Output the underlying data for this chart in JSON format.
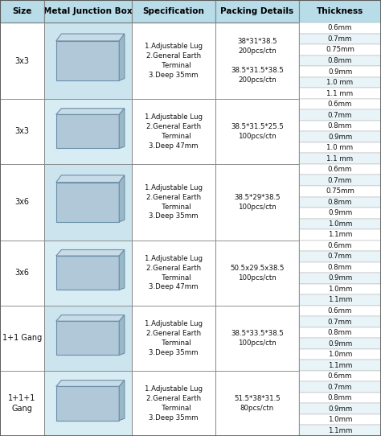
{
  "header_bg": "#b8dce8",
  "header_text_color": "#000000",
  "row_bg_white": "#ffffff",
  "row_bg_light": "#e8f4f8",
  "border_color": "#999999",
  "headers": [
    "Size",
    "Metal Junction Box",
    "Specification",
    "Packing Details",
    "Thickness"
  ],
  "col_starts": [
    0.0,
    0.115,
    0.345,
    0.565,
    0.785
  ],
  "col_ends": [
    0.115,
    0.345,
    0.565,
    0.785,
    1.0
  ],
  "rows": [
    {
      "size": "3x3",
      "spec": "1.Adjustable Lug\n2.General Earth\n   Terminal\n3.Deep 35mm",
      "packing": "38*31*38.5\n200pcs/ctn\n\n38.5*31.5*38.5\n200pcs/ctn",
      "thickness": [
        "0.6mm",
        "0.7mm",
        "0.75mm",
        "0.8mm",
        "0.9mm",
        "1.0 mm",
        "1.1 mm"
      ],
      "num_subrows": 7
    },
    {
      "size": "3x3",
      "spec": "1.Adjustable Lug\n2.General Earth\n   Terminal\n3.Deep 47mm",
      "packing": "38.5*31.5*25.5\n100pcs/ctn",
      "thickness": [
        "0.6mm",
        "0.7mm",
        "0.8mm",
        "0.9mm",
        "1.0 mm",
        "1.1 mm"
      ],
      "num_subrows": 6
    },
    {
      "size": "3x6",
      "spec": "1.Adjustable Lug\n2.General Earth\n   Terminal\n3.Deep 35mm",
      "packing": "38.5*29*38.5\n100pcs/ctn",
      "thickness": [
        "0.6mm",
        "0.7mm",
        "0.75mm",
        "0.8mm",
        "0.9mm",
        "1.0mm",
        "1.1mm"
      ],
      "num_subrows": 7
    },
    {
      "size": "3x6",
      "spec": "1.Adjustable Lug\n2.General Earth\n   Terminal\n3.Deep 47mm",
      "packing": "50.5x29.5x38.5\n100pcs/ctn",
      "thickness": [
        "0.6mm",
        "0.7mm",
        "0.8mm",
        "0.9mm",
        "1.0mm",
        "1.1mm"
      ],
      "num_subrows": 6
    },
    {
      "size": "1+1 Gang",
      "spec": "1.Adjustable Lug\n2.General Earth\n   Terminal\n3.Deep 35mm",
      "packing": "38.5*33.5*38.5\n100pcs/ctn",
      "thickness": [
        "0.6mm",
        "0.7mm",
        "0.8mm",
        "0.9mm",
        "1.0mm",
        "1.1mm"
      ],
      "num_subrows": 6
    },
    {
      "size": "1+1+1\nGang",
      "spec": "1.Adjustable Lug\n2.General Earth\n   Terminal\n3.Deep 35mm",
      "packing": "51.5*38*31.5\n80pcs/ctn",
      "thickness": [
        "0.6mm",
        "0.7mm",
        "0.8mm",
        "0.9mm",
        "1.0mm",
        "1.1mm"
      ],
      "num_subrows": 6
    }
  ],
  "figsize": [
    4.74,
    5.42
  ],
  "dpi": 100
}
